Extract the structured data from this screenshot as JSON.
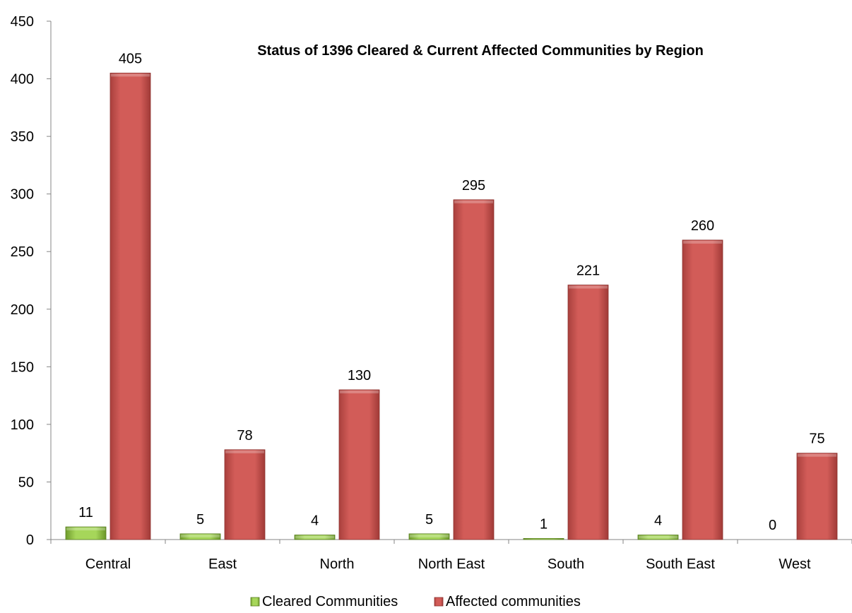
{
  "chart_data": {
    "type": "bar",
    "title": "Status of 1396 Cleared & Current Affected Communities by Region",
    "categories": [
      "Central",
      "East",
      "North",
      "North East",
      "South",
      "South East",
      "West"
    ],
    "series": [
      {
        "name": "Cleared Communities",
        "values": [
          11,
          5,
          4,
          5,
          1,
          4,
          0
        ],
        "color": "#8cc63f"
      },
      {
        "name": "Affected communities",
        "values": [
          405,
          78,
          130,
          295,
          221,
          260,
          75
        ],
        "color": "#c0504d"
      }
    ],
    "xlabel": "",
    "ylabel": "",
    "ylim": [
      0,
      450
    ],
    "yticks": [
      0,
      50,
      100,
      150,
      200,
      250,
      300,
      350,
      400,
      450
    ],
    "grid": false,
    "legend": "bottom"
  }
}
